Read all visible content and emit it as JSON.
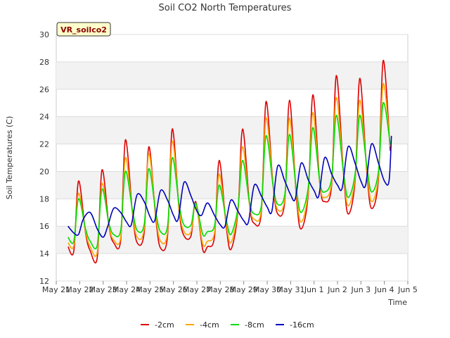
{
  "chart_data": {
    "type": "line",
    "title": "Soil CO2 North Temperatures",
    "xlabel": "Time",
    "ylabel": "Soil Temperatures (C)",
    "badge": "VR_soilco2",
    "ylim": [
      12,
      30
    ],
    "yticks": [
      12,
      14,
      16,
      18,
      20,
      22,
      24,
      26,
      28,
      30
    ],
    "xlim": [
      0,
      15
    ],
    "xticks": [
      {
        "x": 0,
        "label": "May 21"
      },
      {
        "x": 1,
        "label": "May 22"
      },
      {
        "x": 2,
        "label": "May 23"
      },
      {
        "x": 3,
        "label": "May 24"
      },
      {
        "x": 4,
        "label": "May 25"
      },
      {
        "x": 5,
        "label": "May 26"
      },
      {
        "x": 6,
        "label": "May 27"
      },
      {
        "x": 7,
        "label": "May 28"
      },
      {
        "x": 8,
        "label": "May 29"
      },
      {
        "x": 9,
        "label": "May 30"
      },
      {
        "x": 10,
        "label": "May 31"
      },
      {
        "x": 11,
        "label": "Jun 1"
      },
      {
        "x": 12,
        "label": "Jun 2"
      },
      {
        "x": 13,
        "label": "Jun 3"
      },
      {
        "x": 14,
        "label": "Jun 4"
      },
      {
        "x": 15,
        "label": "Jun 5"
      }
    ],
    "grid": true,
    "legend_position": "bottom",
    "series": [
      {
        "name": "-2cm",
        "color": "#dd0000",
        "x": [
          0.5,
          0.75,
          0.95,
          1.25,
          1.45,
          1.75,
          1.95,
          2.25,
          2.45,
          2.75,
          2.95,
          3.25,
          3.45,
          3.75,
          3.95,
          4.25,
          4.45,
          4.75,
          4.95,
          5.25,
          5.45,
          5.75,
          5.95,
          6.25,
          6.45,
          6.75,
          6.95,
          7.25,
          7.45,
          7.75,
          7.95,
          8.25,
          8.45,
          8.75,
          8.95,
          9.25,
          9.45,
          9.75,
          9.95,
          10.25,
          10.45,
          10.75,
          10.95,
          11.25,
          11.45,
          11.75,
          11.95,
          12.25,
          12.45,
          12.75,
          12.95,
          13.25,
          13.45,
          13.75,
          13.95,
          14.25
        ],
        "y": [
          14.5,
          14.2,
          19.3,
          15.5,
          14.2,
          13.7,
          20.1,
          16.0,
          14.8,
          15.0,
          22.3,
          17.0,
          14.8,
          15.5,
          21.8,
          16.5,
          14.4,
          15.3,
          23.1,
          17.0,
          15.3,
          15.3,
          17.8,
          14.3,
          14.5,
          15.2,
          20.8,
          16.0,
          14.3,
          17.0,
          23.1,
          17.5,
          16.2,
          17.0,
          25.1,
          19.0,
          16.9,
          17.8,
          25.2,
          18.0,
          15.8,
          18.3,
          25.6,
          19.0,
          17.8,
          19.0,
          27.0,
          20.0,
          16.9,
          19.3,
          26.8,
          20.0,
          17.3,
          19.5,
          28.1,
          21.5
        ]
      },
      {
        "name": "-4cm",
        "color": "#ffa500",
        "x": [
          0.5,
          0.75,
          0.95,
          1.25,
          1.45,
          1.75,
          1.95,
          2.25,
          2.45,
          2.75,
          2.95,
          3.25,
          3.45,
          3.75,
          3.95,
          4.25,
          4.45,
          4.75,
          4.95,
          5.25,
          5.45,
          5.75,
          5.95,
          6.25,
          6.45,
          6.75,
          6.95,
          7.25,
          7.45,
          7.75,
          7.95,
          8.25,
          8.45,
          8.75,
          8.95,
          9.25,
          9.45,
          9.75,
          9.95,
          10.25,
          10.45,
          10.75,
          10.95,
          11.25,
          11.45,
          11.75,
          11.95,
          12.25,
          12.45,
          12.75,
          12.95,
          13.25,
          13.45,
          13.75,
          13.95,
          14.25
        ],
        "y": [
          14.8,
          14.6,
          18.4,
          15.6,
          14.5,
          14.1,
          19.1,
          16.0,
          15.0,
          15.2,
          21.0,
          17.0,
          15.2,
          15.8,
          21.3,
          16.7,
          14.9,
          15.6,
          22.2,
          17.2,
          15.6,
          15.6,
          17.6,
          14.7,
          14.9,
          15.5,
          19.8,
          16.2,
          14.8,
          17.1,
          21.8,
          17.5,
          16.5,
          17.2,
          23.9,
          19.0,
          17.2,
          18.0,
          23.9,
          18.3,
          16.3,
          18.5,
          24.3,
          19.0,
          18.1,
          19.2,
          25.4,
          20.0,
          17.5,
          19.5,
          25.2,
          20.2,
          17.8,
          19.7,
          26.4,
          21.8
        ]
      },
      {
        "name": "-8cm",
        "color": "#00dd00",
        "x": [
          0.5,
          0.75,
          0.95,
          1.25,
          1.45,
          1.75,
          1.95,
          2.25,
          2.45,
          2.75,
          2.95,
          3.25,
          3.45,
          3.75,
          3.95,
          4.25,
          4.45,
          4.75,
          4.95,
          5.25,
          5.45,
          5.75,
          5.95,
          6.25,
          6.45,
          6.75,
          6.95,
          7.25,
          7.45,
          7.75,
          7.95,
          8.25,
          8.45,
          8.75,
          8.95,
          9.25,
          9.45,
          9.75,
          9.95,
          10.25,
          10.45,
          10.75,
          10.95,
          11.25,
          11.45,
          11.75,
          11.95,
          12.25,
          12.45,
          12.75,
          12.95,
          13.25,
          13.45,
          13.75,
          13.95,
          14.25
        ],
        "y": [
          15.2,
          14.9,
          18.0,
          15.8,
          14.9,
          14.6,
          18.7,
          16.2,
          15.4,
          15.7,
          20.0,
          17.2,
          15.7,
          16.1,
          20.2,
          17.0,
          15.6,
          16.0,
          21.0,
          17.5,
          16.1,
          16.1,
          17.7,
          15.4,
          15.6,
          16.0,
          19.0,
          16.5,
          15.4,
          17.3,
          20.8,
          17.7,
          16.9,
          17.5,
          22.6,
          19.0,
          17.6,
          18.3,
          22.7,
          18.6,
          17.0,
          18.8,
          23.2,
          19.2,
          18.5,
          19.5,
          24.1,
          20.0,
          18.1,
          19.8,
          24.1,
          20.4,
          18.5,
          20.0,
          25.0,
          22.0
        ]
      },
      {
        "name": "-16cm",
        "color": "#0000bb",
        "x": [
          0.5,
          0.75,
          0.95,
          1.15,
          1.45,
          1.75,
          2.0,
          2.2,
          2.45,
          2.75,
          3.0,
          3.2,
          3.45,
          3.75,
          4.0,
          4.2,
          4.45,
          4.75,
          5.0,
          5.2,
          5.45,
          5.75,
          6.0,
          6.2,
          6.45,
          6.75,
          7.0,
          7.2,
          7.45,
          7.75,
          8.0,
          8.2,
          8.45,
          8.75,
          9.0,
          9.2,
          9.45,
          9.75,
          10.0,
          10.2,
          10.45,
          10.75,
          11.0,
          11.2,
          11.45,
          11.75,
          12.0,
          12.2,
          12.45,
          12.75,
          13.0,
          13.2,
          13.45,
          13.75,
          14.0,
          14.2,
          14.3
        ],
        "y": [
          16.0,
          15.5,
          15.4,
          16.5,
          17.0,
          15.8,
          15.2,
          16.0,
          17.3,
          17.0,
          16.3,
          16.1,
          18.3,
          17.8,
          16.7,
          16.4,
          18.6,
          17.9,
          16.8,
          16.5,
          19.2,
          18.2,
          17.1,
          16.8,
          17.7,
          16.8,
          16.1,
          16.0,
          17.9,
          17.1,
          16.4,
          16.3,
          19.0,
          18.2,
          17.4,
          17.1,
          20.4,
          19.3,
          18.3,
          18.0,
          20.6,
          19.4,
          18.6,
          18.2,
          21.0,
          19.8,
          19.0,
          18.8,
          21.8,
          20.6,
          19.3,
          19.0,
          22.0,
          20.6,
          19.3,
          19.3,
          22.6
        ]
      }
    ]
  }
}
